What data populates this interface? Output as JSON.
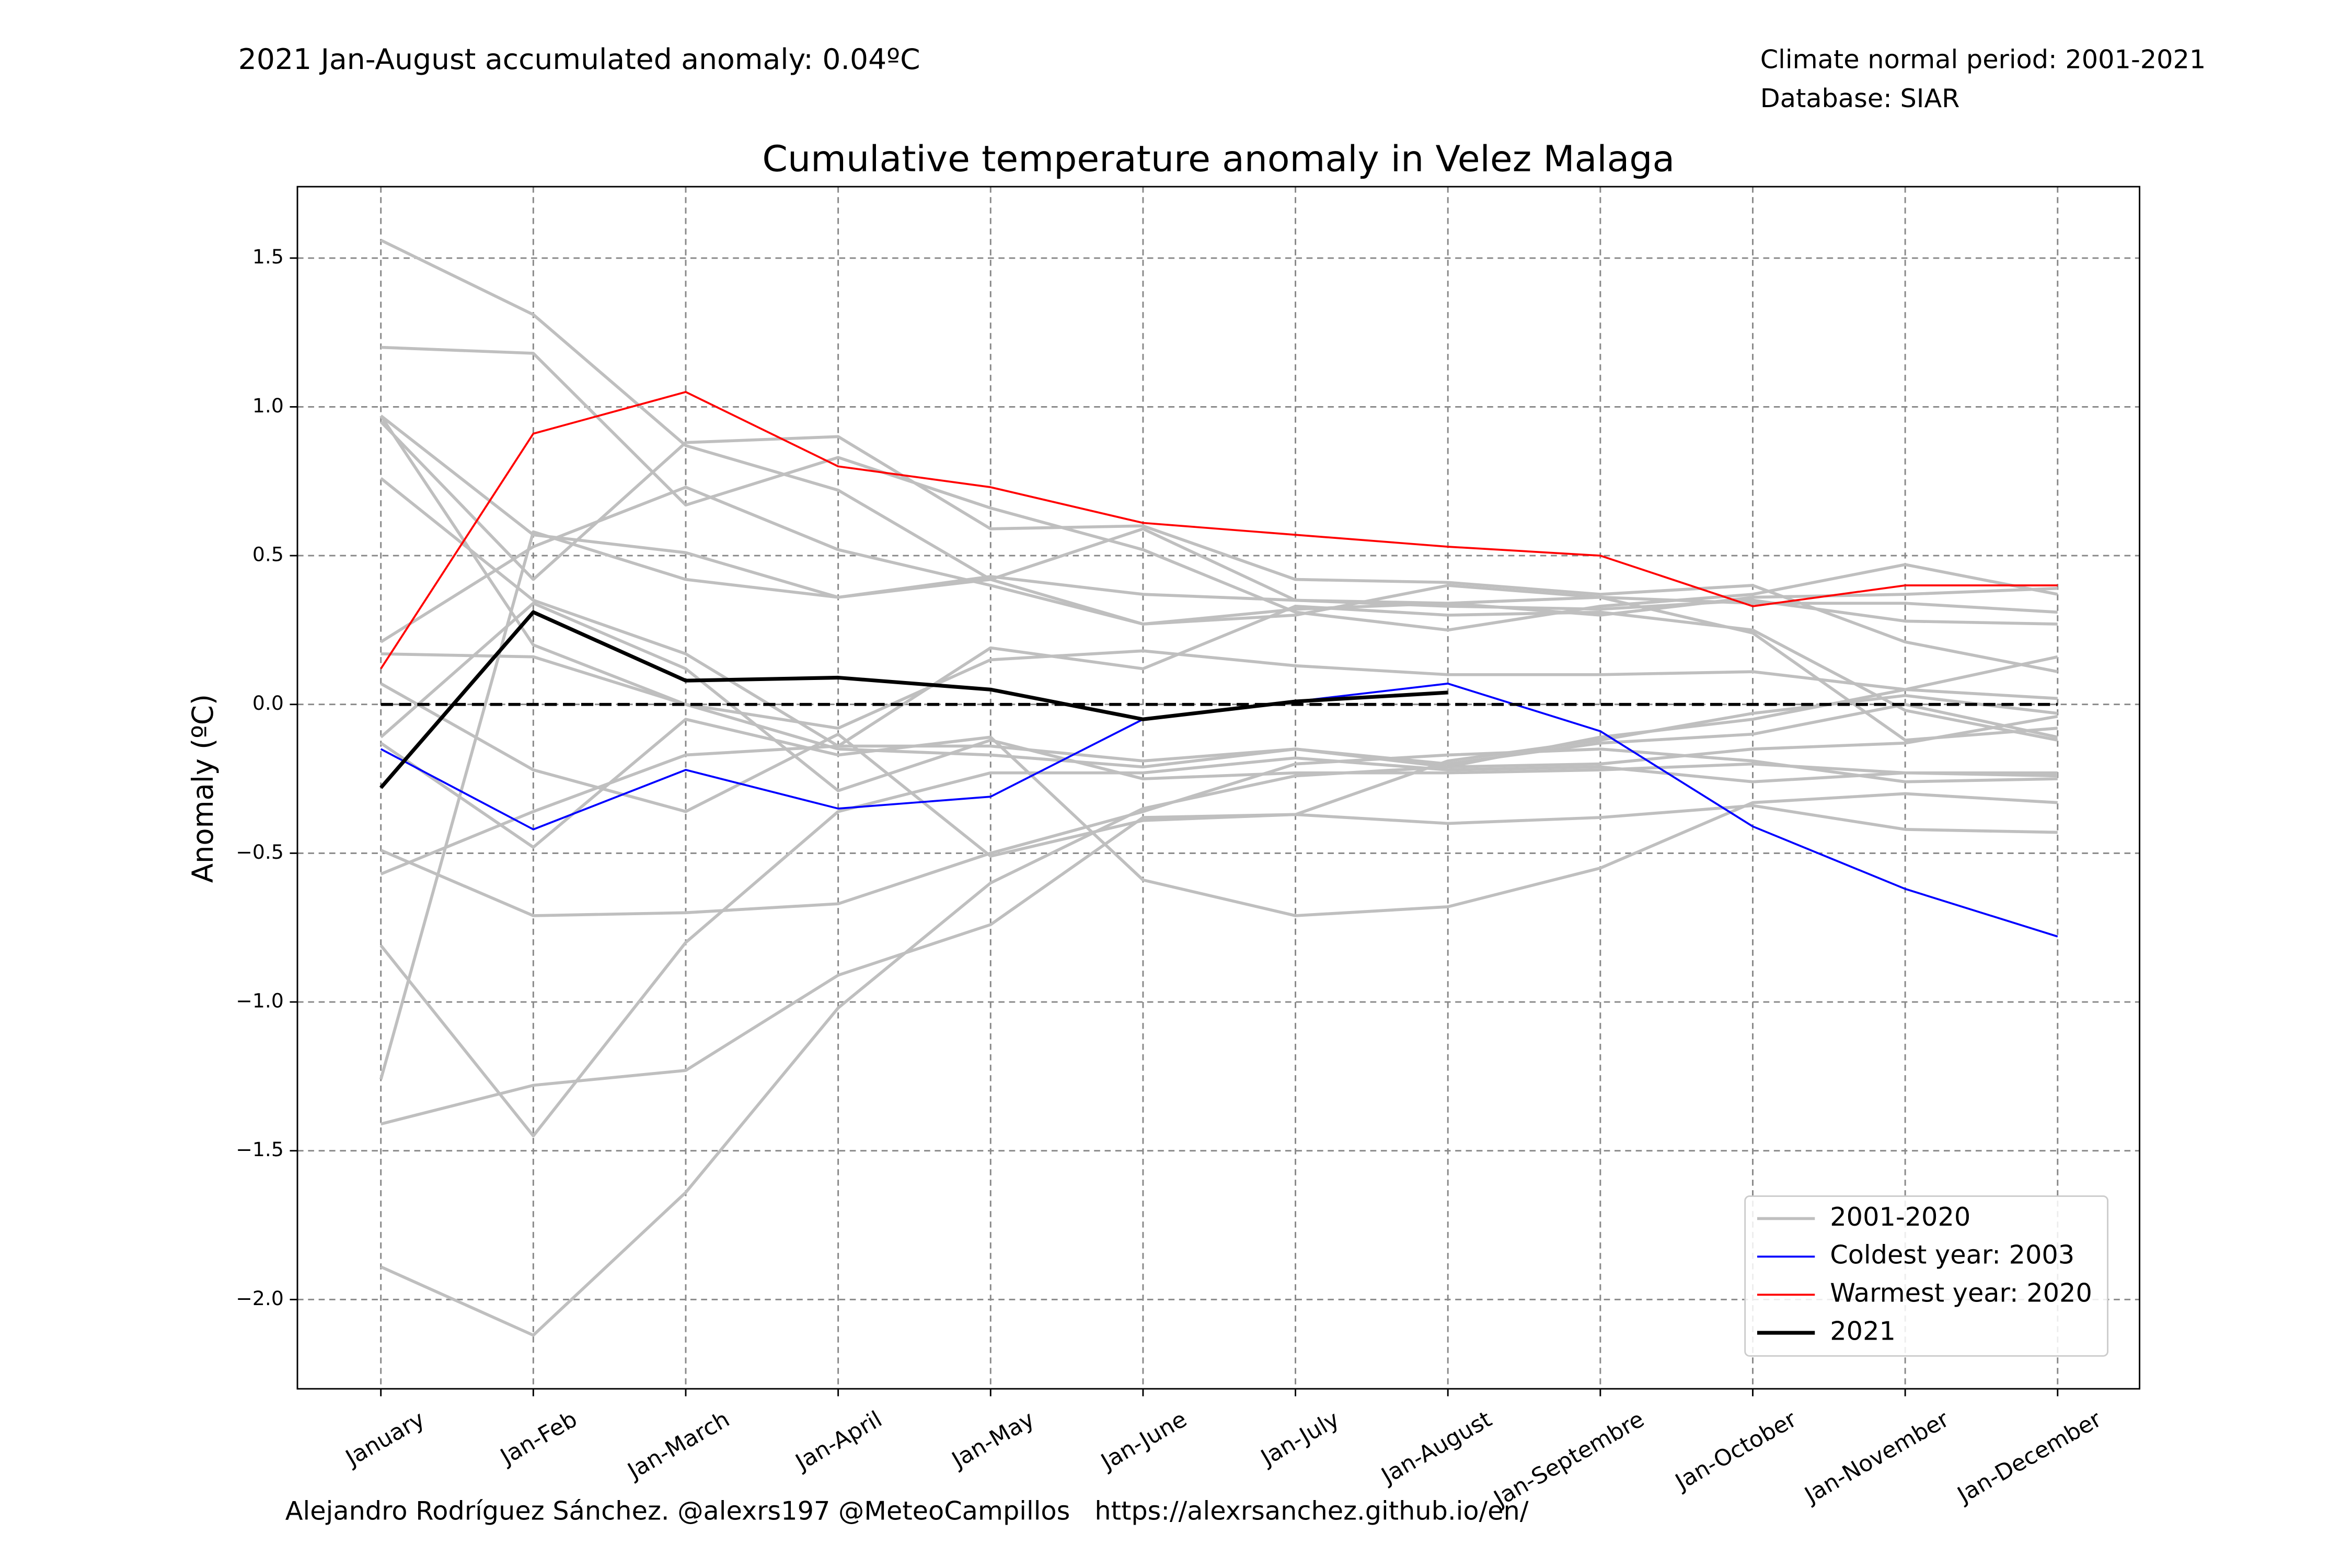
{
  "chart_data": {
    "type": "line",
    "title": "Cumulative temperature anomaly in Velez Malaga",
    "annotation": "2021 Jan-August accumulated anomaly: 0.04ºC",
    "annotation_color": "#ff0000",
    "info_lines": [
      "Climate normal period: 2001-2021",
      "Database: SIAR"
    ],
    "footer": "Alejandro Rodríguez Sánchez. @alexrs197 @MeteoCampillos   https://alexrsanchez.github.io/en/",
    "y_label": "Anomaly (ºC)",
    "categories": [
      "January",
      "Jan-Feb",
      "Jan-March",
      "Jan-April",
      "Jan-May",
      "Jan-June",
      "Jan-July",
      "Jan-August",
      "Jan-Septembre",
      "Jan-October",
      "Jan-November",
      "Jan-December"
    ],
    "ylim": [
      -2.3,
      1.74
    ],
    "yticks": [
      {
        "value": -2.0,
        "label": "−2.0"
      },
      {
        "value": -1.5,
        "label": "−1.5"
      },
      {
        "value": -1.0,
        "label": "−1.0"
      },
      {
        "value": -0.5,
        "label": "−0.5"
      },
      {
        "value": 0,
        "label": "0.0"
      },
      0.5,
      {
        "value": 1.0,
        "label": "1.0"
      },
      1.5
    ],
    "grid": true,
    "reference_line": 0,
    "legend": "lower right",
    "series": [
      {
        "name": "2001-2020",
        "color": "#bfbfbf",
        "lines": [
          [
            1.56,
            1.31,
            0.87,
            0.72,
            0.42,
            0.59,
            0.35,
            0.33,
            0.32,
            0.35,
            0.28,
            0.27
          ],
          [
            1.2,
            1.18,
            0.67,
            0.83,
            0.66,
            0.52,
            0.31,
            0.25,
            0.33,
            0.37,
            0.47,
            0.37
          ],
          [
            0.97,
            0.57,
            0.51,
            0.36,
            0.43,
            0.37,
            0.35,
            0.34,
            0.36,
            0.34,
            0.34,
            0.31
          ],
          [
            0.95,
            0.42,
            0.88,
            0.9,
            0.59,
            0.6,
            0.42,
            0.41,
            0.37,
            0.4,
            0.21,
            0.11
          ],
          [
            0.76,
            0.35,
            0.17,
            -0.14,
            0.19,
            0.12,
            0.33,
            0.3,
            0.31,
            0.25,
            -0.02,
            -0.12
          ],
          [
            0.97,
            0.2,
            0.0,
            -0.15,
            -0.17,
            -0.21,
            -0.15,
            -0.21,
            -0.11,
            -0.05,
            0.05,
            0.16
          ],
          [
            0.21,
            0.53,
            0.73,
            0.52,
            0.4,
            0.27,
            0.32,
            0.34,
            0.3,
            0.36,
            0.37,
            0.39
          ],
          [
            0.17,
            0.16,
            0.0,
            -0.08,
            0.15,
            0.18,
            0.13,
            0.1,
            0.1,
            0.11,
            0.05,
            0.02
          ],
          [
            0.07,
            -0.22,
            -0.36,
            -0.1,
            -0.51,
            -0.39,
            -0.37,
            -0.19,
            -0.12,
            -0.03,
            0.03,
            -0.03
          ],
          [
            -0.11,
            0.34,
            0.12,
            -0.29,
            -0.12,
            -0.25,
            -0.23,
            -0.23,
            -0.22,
            -0.2,
            -0.23,
            -0.24
          ],
          [
            -0.57,
            -0.36,
            -0.17,
            -0.14,
            -0.14,
            -0.19,
            -0.15,
            -0.2,
            -0.13,
            -0.1,
            0.0,
            -0.11
          ],
          [
            -0.49,
            -0.71,
            -0.7,
            -0.67,
            -0.5,
            -0.36,
            -0.2,
            -0.17,
            -0.15,
            -0.19,
            -0.26,
            -0.25
          ],
          [
            -0.13,
            -0.48,
            -0.05,
            -0.17,
            -0.11,
            -0.59,
            -0.71,
            -0.68,
            -0.55,
            -0.33,
            -0.3,
            -0.33
          ],
          [
            -0.81,
            -1.45,
            -0.8,
            -0.36,
            -0.23,
            -0.23,
            -0.18,
            -0.22,
            -0.21,
            -0.26,
            -0.23,
            -0.23
          ],
          [
            -1.26,
            0.58,
            0.42,
            0.36,
            0.42,
            0.27,
            0.3,
            0.4,
            0.36,
            0.24,
            -0.12,
            -0.08
          ],
          [
            -1.41,
            -1.28,
            -1.23,
            -0.91,
            -0.74,
            -0.38,
            -0.37,
            -0.4,
            -0.38,
            -0.34,
            -0.42,
            -0.43
          ],
          [
            -1.89,
            -2.12,
            -1.64,
            -1.02,
            -0.6,
            -0.35,
            -0.24,
            -0.21,
            -0.2,
            -0.15,
            -0.13,
            -0.04
          ]
        ]
      },
      {
        "name": "Coldest year: 2003",
        "color": "#0000ff",
        "values": [
          -0.15,
          -0.42,
          -0.22,
          -0.35,
          -0.31,
          -0.05,
          0.01,
          0.07,
          -0.09,
          -0.41,
          -0.62,
          -0.78
        ]
      },
      {
        "name": "Warmest year: 2020",
        "color": "#ff0000",
        "values": [
          0.12,
          0.91,
          1.05,
          0.8,
          0.73,
          0.61,
          0.57,
          0.53,
          0.5,
          0.33,
          0.4,
          0.4
        ]
      },
      {
        "name": "2021",
        "color": "#000000",
        "values": [
          -0.28,
          0.31,
          0.08,
          0.09,
          0.05,
          -0.05,
          0.01,
          0.04,
          null,
          null,
          null,
          null
        ]
      }
    ]
  }
}
